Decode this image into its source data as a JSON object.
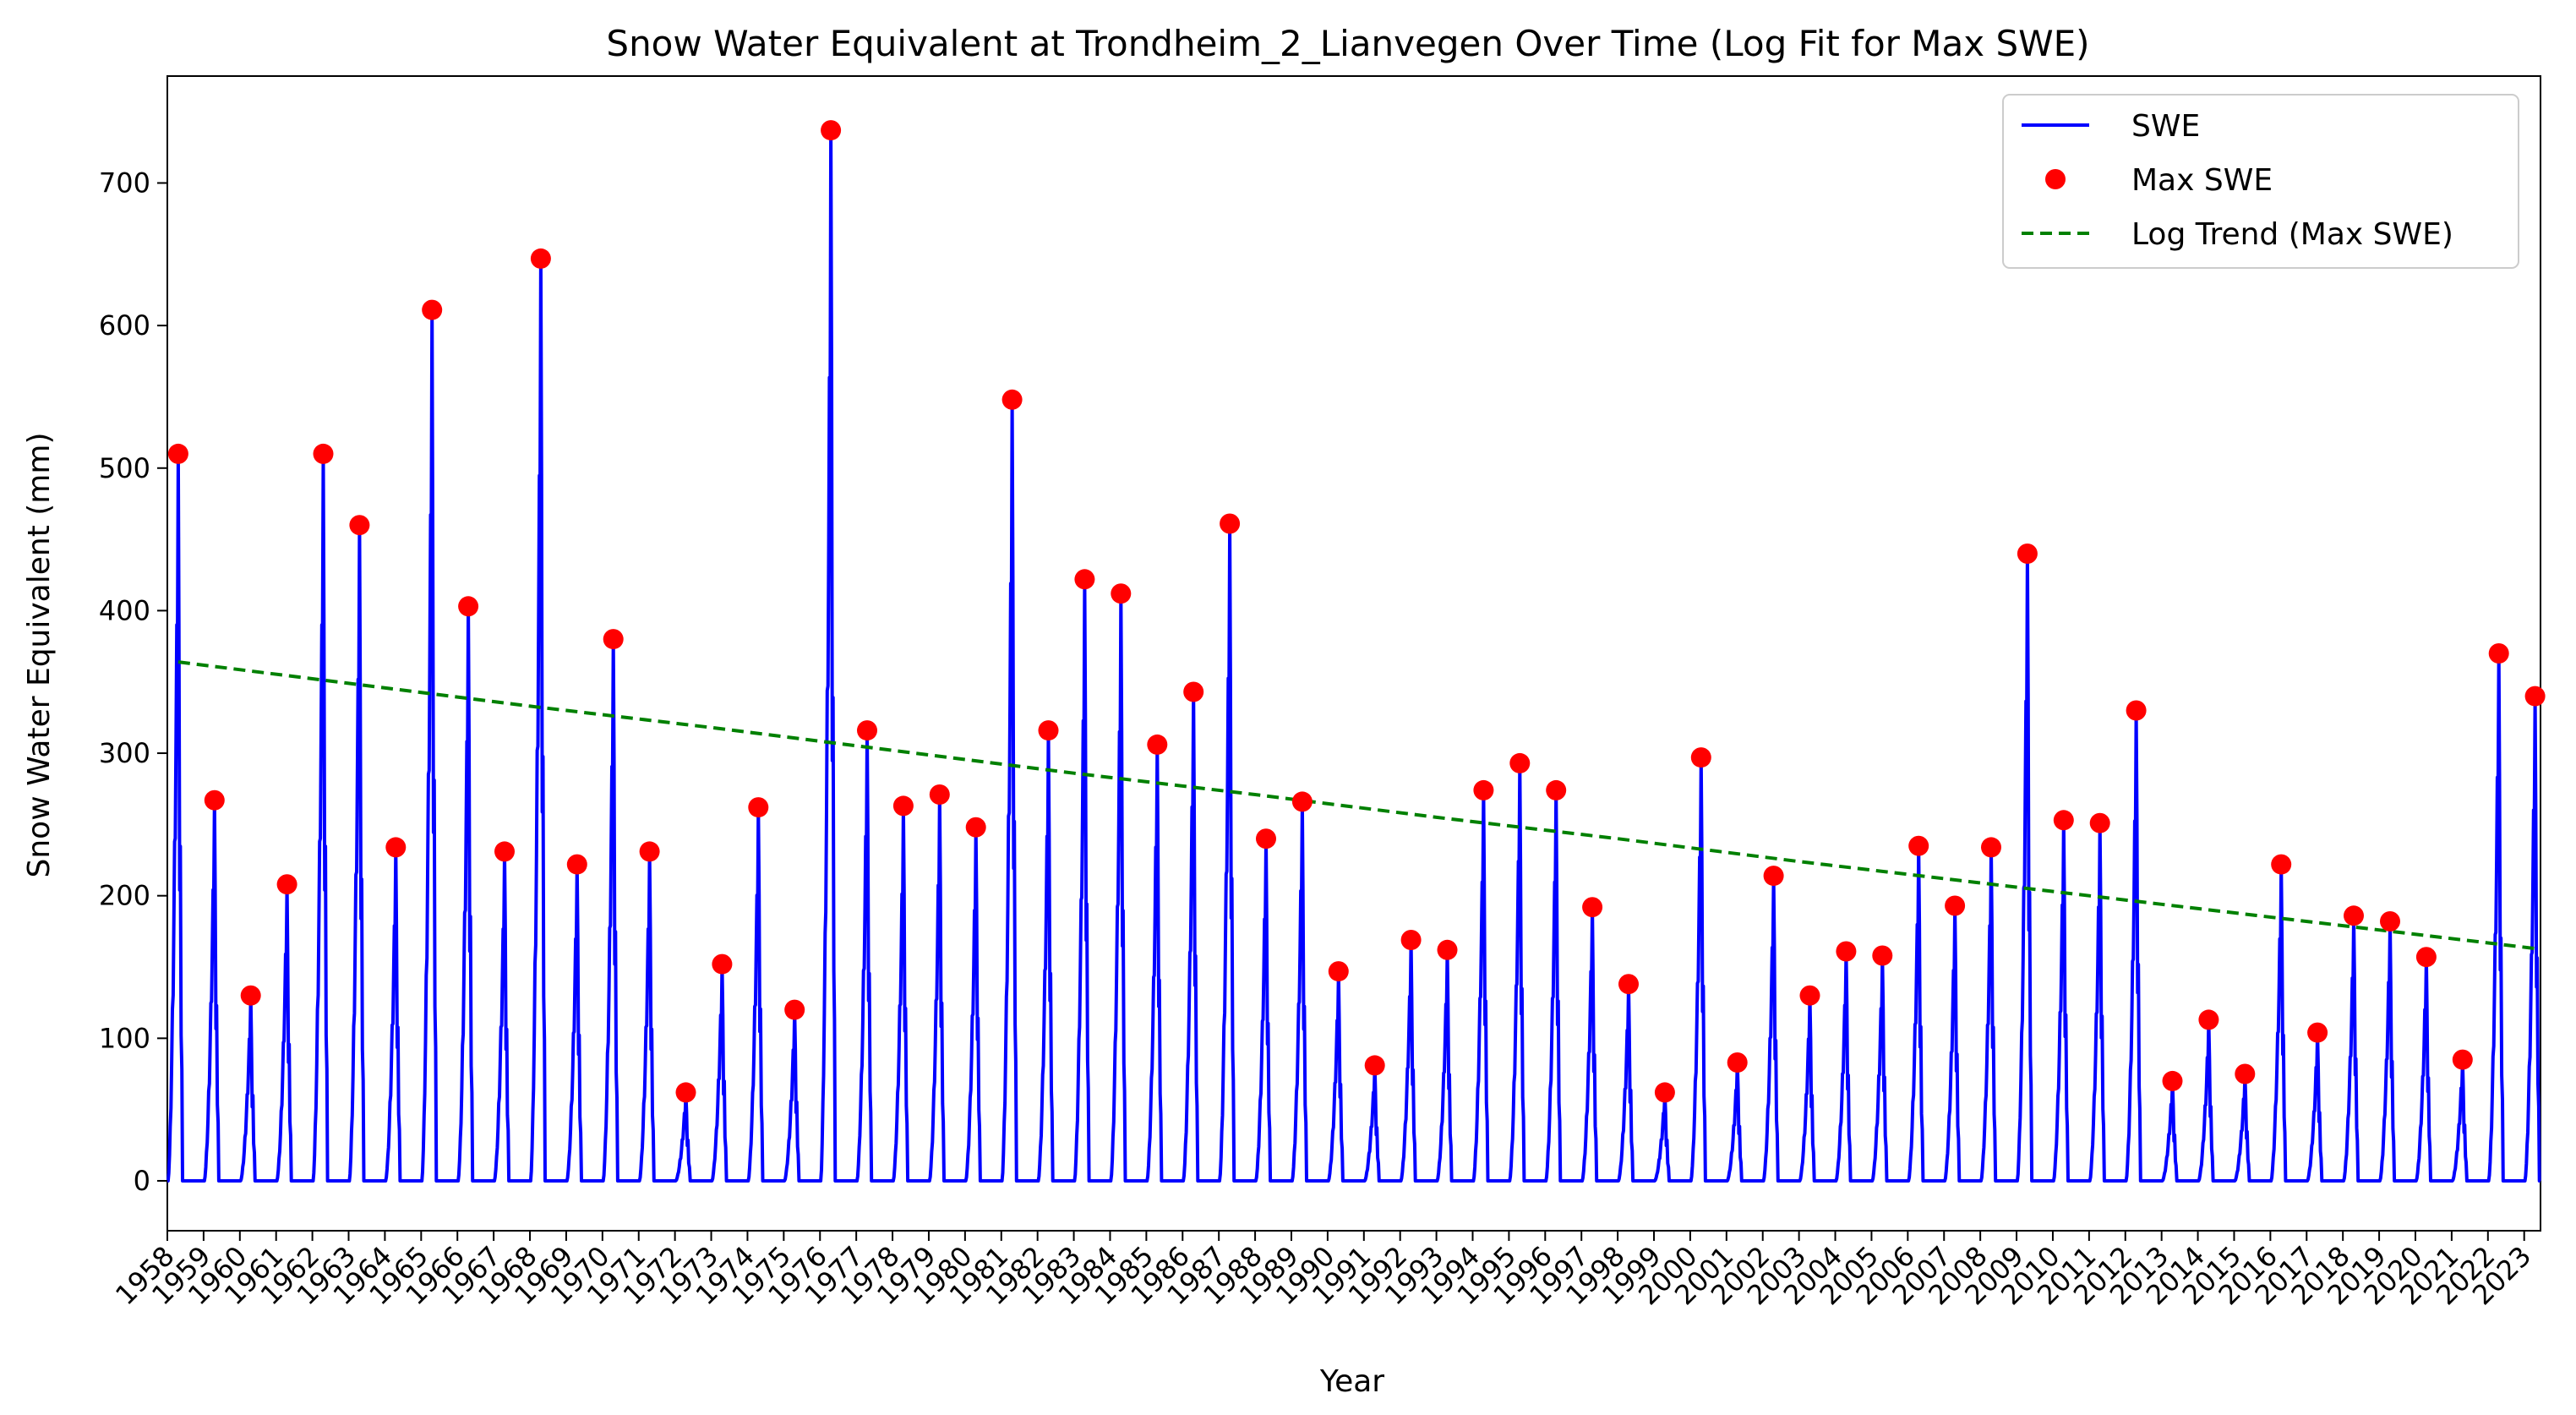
{
  "chart_data": {
    "type": "line",
    "title": "Snow Water Equivalent at Trondheim_2_Lianvegen Over Time (Log Fit for Max SWE)",
    "xlabel": "Year",
    "ylabel": "Snow Water Equivalent (mm)",
    "ylim": [
      -35,
      775
    ],
    "xlim": [
      1958.0,
      2023.45
    ],
    "yticks": [
      0,
      100,
      200,
      300,
      400,
      500,
      600,
      700
    ],
    "xticks": [
      "1958",
      "1959",
      "1960",
      "1961",
      "1962",
      "1963",
      "1964",
      "1965",
      "1966",
      "1967",
      "1968",
      "1969",
      "1970",
      "1971",
      "1972",
      "1973",
      "1974",
      "1975",
      "1976",
      "1977",
      "1978",
      "1979",
      "1980",
      "1981",
      "1982",
      "1983",
      "1984",
      "1985",
      "1986",
      "1987",
      "1988",
      "1989",
      "1990",
      "1991",
      "1992",
      "1993",
      "1994",
      "1995",
      "1996",
      "1997",
      "1998",
      "1999",
      "2000",
      "2001",
      "2002",
      "2003",
      "2004",
      "2005",
      "2006",
      "2007",
      "2008",
      "2009",
      "2010",
      "2011",
      "2012",
      "2013",
      "2014",
      "2015",
      "2016",
      "2017",
      "2018",
      "2019",
      "2020",
      "2021",
      "2022",
      "2023"
    ],
    "grid": false,
    "legend_position": "top-right",
    "series": [
      {
        "name": "SWE",
        "style": "line",
        "color": "#0000ff",
        "description": "Daily SWE; seasonal peaks rising from zero each winter and melting to zero each spring"
      },
      {
        "name": "Max SWE",
        "style": "scatter",
        "color": "#ff0000",
        "x": [
          1958.3,
          1959.3,
          1960.3,
          1961.3,
          1962.3,
          1963.3,
          1964.3,
          1965.3,
          1966.3,
          1967.3,
          1968.3,
          1969.3,
          1970.3,
          1971.3,
          1972.3,
          1973.3,
          1974.3,
          1975.3,
          1976.3,
          1977.3,
          1978.3,
          1979.3,
          1980.3,
          1981.3,
          1982.3,
          1983.3,
          1984.3,
          1985.3,
          1986.3,
          1987.3,
          1988.3,
          1989.3,
          1990.3,
          1991.3,
          1992.3,
          1993.3,
          1994.3,
          1995.3,
          1996.3,
          1997.3,
          1998.3,
          1999.3,
          2000.3,
          2001.3,
          2002.3,
          2003.3,
          2004.3,
          2005.3,
          2006.3,
          2007.3,
          2008.3,
          2009.3,
          2010.3,
          2011.3,
          2012.3,
          2013.3,
          2014.3,
          2015.3,
          2016.3,
          2017.3,
          2018.3,
          2019.3,
          2020.3,
          2021.3,
          2022.3,
          2023.3
        ],
        "values": [
          510,
          267,
          130,
          208,
          510,
          460,
          234,
          611,
          403,
          231,
          647,
          222,
          380,
          231,
          62,
          152,
          262,
          120,
          737,
          316,
          263,
          271,
          248,
          548,
          316,
          422,
          412,
          306,
          343,
          461,
          240,
          266,
          147,
          81,
          169,
          162,
          274,
          293,
          274,
          192,
          138,
          62,
          297,
          83,
          214,
          130,
          161,
          158,
          235,
          193,
          234,
          440,
          253,
          251,
          330,
          70,
          113,
          75,
          222,
          104,
          186,
          182,
          157,
          85,
          370,
          340
        ]
      },
      {
        "name": "Log Trend (Max SWE)",
        "style": "dashed-line",
        "color": "#008000",
        "x": [
          1958.3,
          1963,
          1968,
          1973,
          1978,
          1983,
          1988,
          1993,
          1998,
          2003,
          2008,
          2013,
          2018,
          2023.3
        ],
        "values": [
          364,
          349,
          333,
          318,
          302,
          286,
          271,
          255,
          240,
          224,
          209,
          194,
          179,
          163
        ]
      }
    ]
  }
}
